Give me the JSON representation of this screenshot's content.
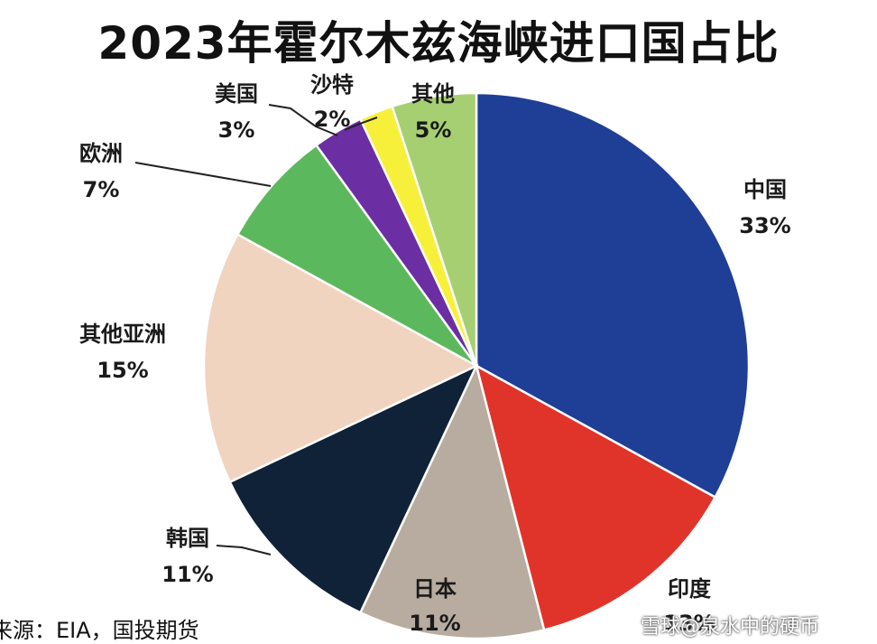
{
  "title": "2023年霍尔木兹海峡进口国占比",
  "source": "来源：EIA，国投期货",
  "watermark": "雪球@泉水中的硬币",
  "chart_data": {
    "type": "pie",
    "title": "2023年霍尔木兹海峡进口国占比",
    "slices": [
      {
        "name": "中国",
        "value": 33,
        "label": "33%",
        "color": "#1f3f96"
      },
      {
        "name": "印度",
        "value": 13,
        "label": "13%",
        "color": "#e0342a"
      },
      {
        "name": "日本",
        "value": 11,
        "label": "11%",
        "color": "#b8aca0"
      },
      {
        "name": "韩国",
        "value": 11,
        "label": "11%",
        "color": "#0f2238"
      },
      {
        "name": "其他亚洲",
        "value": 15,
        "label": "15%",
        "color": "#f0d4bf"
      },
      {
        "name": "欧洲",
        "value": 7,
        "label": "7%",
        "color": "#5cb85c"
      },
      {
        "name": "美国",
        "value": 3,
        "label": "3%",
        "color": "#6b2ea3"
      },
      {
        "name": "沙特",
        "value": 2,
        "label": "2%",
        "color": "#f7f03a"
      },
      {
        "name": "其他",
        "value": 5,
        "label": "5%",
        "color": "#a6cf72"
      }
    ]
  }
}
